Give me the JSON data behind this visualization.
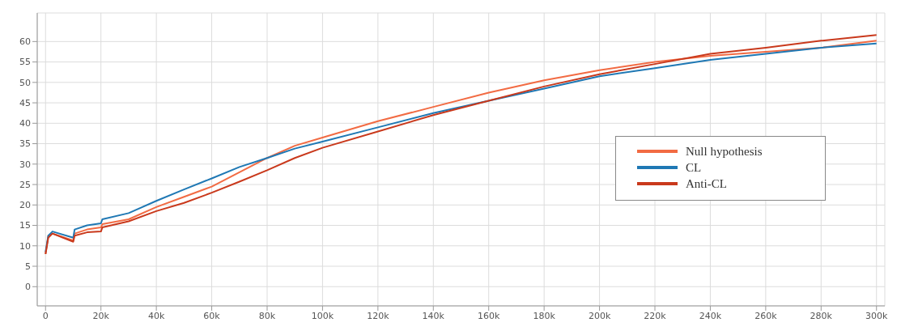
{
  "chart_data": {
    "type": "line",
    "x": [
      0,
      1000,
      2500,
      10000,
      10500,
      15000,
      20000,
      20500,
      30000,
      40000,
      50000,
      60000,
      70000,
      80000,
      90000,
      100000,
      120000,
      140000,
      160000,
      180000,
      200000,
      220000,
      240000,
      260000,
      280000,
      300000
    ],
    "series": [
      {
        "name": "Null hypothesis",
        "color": "#f26b43",
        "values": [
          8,
          12.5,
          13,
          11.3,
          13,
          14,
          14.5,
          15.3,
          16.5,
          19.5,
          22,
          24.5,
          28,
          31.5,
          34.5,
          36.5,
          40.5,
          44,
          47.5,
          50.5,
          53,
          55,
          56.5,
          57.5,
          58.5,
          60.2
        ]
      },
      {
        "name": "CL",
        "color": "#1f78b4",
        "values": [
          8.5,
          12.5,
          13.5,
          12,
          14,
          15,
          15.5,
          16.5,
          18,
          21,
          23.8,
          26.5,
          29.3,
          31.5,
          33.8,
          35.5,
          39,
          42.5,
          45.5,
          48.5,
          51.5,
          53.5,
          55.5,
          57,
          58.5,
          59.5
        ]
      },
      {
        "name": "Anti-CL",
        "color": "#c9391c",
        "values": [
          8,
          12,
          13,
          11,
          12.5,
          13.3,
          13.5,
          14.5,
          16,
          18.5,
          20.5,
          23,
          25.7,
          28.5,
          31.5,
          34,
          38,
          42,
          45.5,
          49,
          52,
          54.5,
          57,
          58.5,
          60.2,
          61.6
        ]
      }
    ],
    "xlim": [
      -3000,
      303000
    ],
    "xticks": [
      {
        "value": 0,
        "label": "0"
      },
      {
        "value": 20000,
        "label": "20k"
      },
      {
        "value": 40000,
        "label": "40k"
      },
      {
        "value": 60000,
        "label": "60k"
      },
      {
        "value": 80000,
        "label": "80k"
      },
      {
        "value": 100000,
        "label": "100k"
      },
      {
        "value": 120000,
        "label": "120k"
      },
      {
        "value": 140000,
        "label": "140k"
      },
      {
        "value": 160000,
        "label": "160k"
      },
      {
        "value": 180000,
        "label": "180k"
      },
      {
        "value": 200000,
        "label": "200k"
      },
      {
        "value": 220000,
        "label": "220k"
      },
      {
        "value": 240000,
        "label": "240k"
      },
      {
        "value": 260000,
        "label": "260k"
      },
      {
        "value": 280000,
        "label": "280k"
      },
      {
        "value": 300000,
        "label": "300k"
      }
    ],
    "ylim": [
      -4.7,
      67
    ],
    "yticks": [
      0,
      5,
      10,
      15,
      20,
      25,
      30,
      35,
      40,
      45,
      50,
      55,
      60
    ],
    "grid": true,
    "legend": "right",
    "line_style": "solid",
    "marker": "none"
  }
}
